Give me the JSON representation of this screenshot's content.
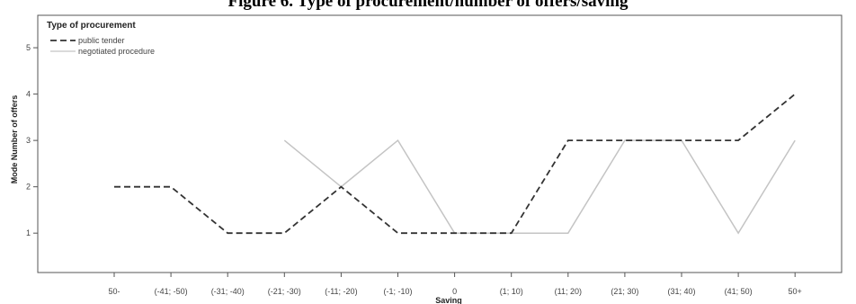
{
  "figure_title": "Figure 6. Type of procurement/number of offers/saving",
  "chart_data": {
    "type": "line",
    "xlabel": "Saving",
    "ylabel": "Mode Number of offers",
    "categories": [
      "50-",
      "(-41; -50)",
      "(-31; -40)",
      "(-21; -30)",
      "(-11; -20)",
      "(-1; -10)",
      "0",
      "(1; 10)",
      "(11; 20)",
      "(21; 30)",
      "(31; 40)",
      "(41; 50)",
      "50+"
    ],
    "yticks": [
      1,
      2,
      3,
      4,
      5
    ],
    "ytick_labels": [
      "1",
      "2",
      "3",
      "4",
      "5"
    ],
    "ylim": [
      0.15,
      5.7
    ],
    "grid": false,
    "legend": {
      "title": "Type of procurement",
      "placement": "top-left"
    },
    "series": [
      {
        "name": "public tender",
        "style": "dashed",
        "color": "#333333",
        "values": [
          2,
          2,
          1,
          1,
          2,
          1,
          1,
          1,
          3,
          3,
          3,
          3,
          4
        ]
      },
      {
        "name": "negotiated procedure",
        "style": "solid",
        "color": "#c4c4c4",
        "values": [
          null,
          null,
          null,
          3,
          2,
          3,
          1,
          1,
          1,
          3,
          3,
          1,
          3
        ]
      }
    ]
  }
}
